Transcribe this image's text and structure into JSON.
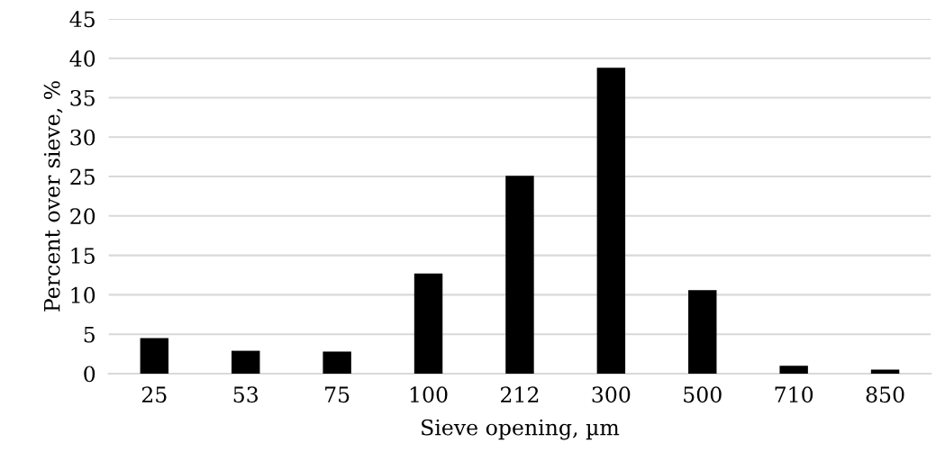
{
  "chart_data": {
    "type": "bar",
    "xlabel": "Sieve opening, µm",
    "ylabel": "Percent over sieve, %",
    "categories": [
      "25",
      "53",
      "75",
      "100",
      "212",
      "300",
      "500",
      "710",
      "850"
    ],
    "values": [
      4.5,
      2.9,
      2.8,
      12.7,
      25.1,
      38.8,
      10.6,
      1.0,
      0.5
    ],
    "color": "#000000",
    "ylim": [
      0,
      45
    ],
    "yticks": [
      0,
      5,
      10,
      15,
      20,
      25,
      30,
      35,
      40,
      45
    ],
    "grid": "y"
  }
}
